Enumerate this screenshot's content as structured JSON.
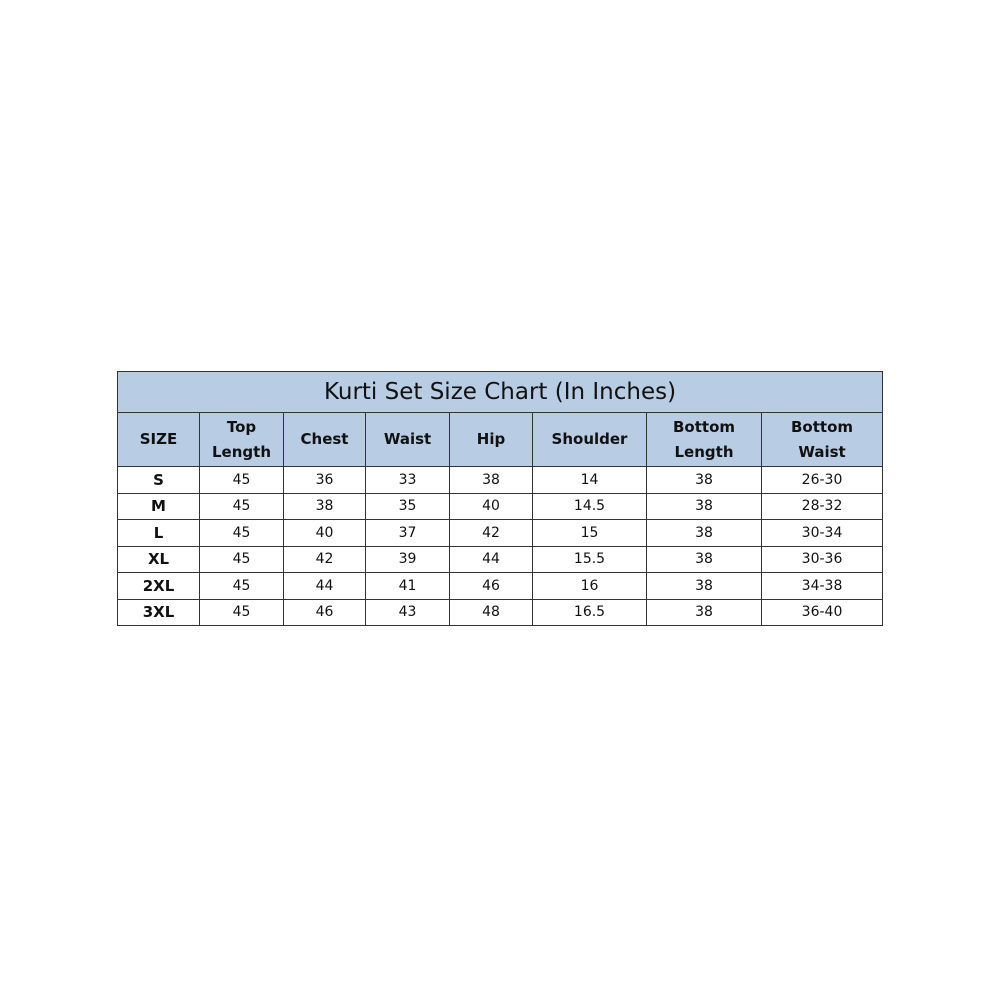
{
  "title": "Kurti Set Size Chart (In Inches)",
  "headers": [
    "SIZE",
    "Top Length",
    "Chest",
    "Waist",
    "Hip",
    "Shoulder",
    "Bottom Length",
    "Bottom Waist"
  ],
  "header_color": "#b8cce4",
  "rows": [
    [
      "S",
      "45",
      "36",
      "33",
      "38",
      "14",
      "38",
      "26-30"
    ],
    [
      "M",
      "45",
      "38",
      "35",
      "40",
      "14.5",
      "38",
      "28-32"
    ],
    [
      "L",
      "45",
      "40",
      "37",
      "42",
      "15",
      "38",
      "30-34"
    ],
    [
      "XL",
      "45",
      "42",
      "39",
      "44",
      "15.5",
      "38",
      "30-36"
    ],
    [
      "2XL",
      "45",
      "44",
      "41",
      "46",
      "16",
      "38",
      "34-38"
    ],
    [
      "3XL",
      "45",
      "46",
      "43",
      "48",
      "16.5",
      "38",
      "36-40"
    ]
  ]
}
